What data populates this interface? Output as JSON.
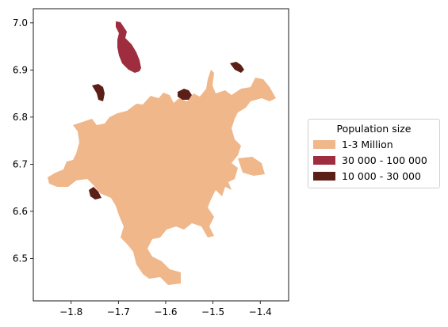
{
  "map": {
    "x_ticks": [
      "−1.8",
      "−1.7",
      "−1.6",
      "−1.5",
      "−1.4"
    ],
    "y_ticks": [
      "6.5",
      "6.6",
      "6.7",
      "6.8",
      "6.9",
      "7.0"
    ],
    "xlim": [
      -1.88,
      -1.34
    ],
    "ylim": [
      6.41,
      7.03
    ]
  },
  "legend": {
    "title": "Population size",
    "items": [
      {
        "label": "1-3 Million",
        "color": "#f0b78b"
      },
      {
        "label": "30 000 - 100 000",
        "color": "#9e2e3f"
      },
      {
        "label": "10 000 - 30 000",
        "color": "#5c1f17"
      }
    ]
  }
}
